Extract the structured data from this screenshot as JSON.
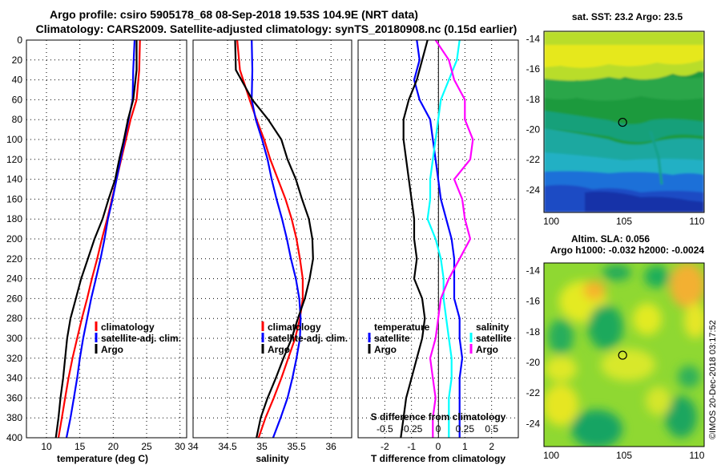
{
  "titles": {
    "line1": "Argo profile: csiro 5905178_68 08-Sep-2018 19.53S 104.9E (NRT data)",
    "line2": "Climatology: CARS2009. Satellite-adjusted climatology: synTS_20180908.nc (0.15d earlier)"
  },
  "colors": {
    "climatology": "#ff0000",
    "satellite": "#0000ff",
    "argo": "#000000",
    "sat_salinity": "#00ffff",
    "argo_salinity": "#ff00ff"
  },
  "legends": {
    "climatology": "climatology",
    "satellite_adj": "satellite-adj. clim.",
    "argo": "Argo",
    "temperature": "temperature",
    "salinity": "salinity",
    "satellite": "satellite"
  },
  "watermark": "©IMOS 20-Dec-2018 03:17:52",
  "chart_data": [
    {
      "type": "line",
      "panel": "temperature",
      "xlabel": "temperature (deg C)",
      "ylabel": "depth",
      "xlim": [
        7,
        31
      ],
      "ylim": [
        400,
        0
      ],
      "xticks": [
        10,
        15,
        20,
        25,
        30
      ],
      "yticks": [
        0,
        20,
        40,
        60,
        80,
        100,
        120,
        140,
        160,
        180,
        200,
        220,
        240,
        260,
        280,
        300,
        320,
        340,
        360,
        380,
        400
      ],
      "grid": true,
      "legend": "lower-right",
      "series": [
        {
          "name": "climatology",
          "color": "#ff0000",
          "depth": [
            0,
            30,
            60,
            80,
            100,
            120,
            140,
            160,
            180,
            200,
            220,
            240,
            260,
            280,
            300,
            320,
            340,
            360,
            380,
            400
          ],
          "values": [
            24.0,
            23.9,
            23.5,
            22.6,
            21.9,
            21.2,
            20.5,
            19.8,
            19.1,
            18.3,
            17.6,
            16.8,
            16.1,
            15.3,
            14.6,
            13.9,
            13.3,
            12.8,
            12.3,
            11.8
          ]
        },
        {
          "name": "satellite-adj. clim.",
          "color": "#0000ff",
          "depth": [
            0,
            30,
            60,
            80,
            100,
            120,
            140,
            160,
            180,
            200,
            220,
            240,
            260,
            280,
            300,
            320,
            340,
            360,
            380,
            400
          ],
          "values": [
            23.2,
            23.0,
            22.9,
            22.3,
            21.7,
            21.1,
            20.5,
            19.9,
            19.2,
            18.7,
            18.1,
            17.4,
            16.7,
            16.1,
            15.5,
            15.0,
            14.6,
            14.1,
            13.6,
            13.0
          ]
        },
        {
          "name": "Argo",
          "color": "#000000",
          "depth": [
            0,
            30,
            60,
            80,
            100,
            120,
            140,
            160,
            180,
            200,
            220,
            240,
            260,
            280,
            300,
            320,
            340,
            360,
            380,
            400
          ],
          "values": [
            23.5,
            23.5,
            23.0,
            22.2,
            21.6,
            20.9,
            20.3,
            19.3,
            18.4,
            17.2,
            16.2,
            15.2,
            14.4,
            13.6,
            13.1,
            12.8,
            12.5,
            12.1,
            11.8,
            11.4
          ]
        }
      ]
    },
    {
      "type": "line",
      "panel": "salinity",
      "xlabel": "salinity",
      "ylabel": "depth",
      "xlim": [
        34.0,
        36.3
      ],
      "ylim": [
        400,
        0
      ],
      "xticks": [
        34,
        34.5,
        35,
        35.5,
        36
      ],
      "grid": true,
      "legend": "lower-right",
      "series": [
        {
          "name": "climatology",
          "color": "#ff0000",
          "depth": [
            0,
            30,
            60,
            80,
            100,
            120,
            140,
            160,
            180,
            200,
            220,
            240,
            260,
            280,
            300,
            320,
            340,
            360,
            380,
            400
          ],
          "values": [
            34.64,
            34.68,
            34.82,
            34.92,
            35.03,
            35.12,
            35.23,
            35.34,
            35.43,
            35.5,
            35.55,
            35.59,
            35.59,
            35.55,
            35.48,
            35.38,
            35.28,
            35.17,
            35.05,
            34.95
          ]
        },
        {
          "name": "satellite-adj. clim.",
          "color": "#0000ff",
          "depth": [
            0,
            30,
            60,
            80,
            100,
            120,
            140,
            160,
            180,
            200,
            220,
            240,
            260,
            280,
            300,
            320,
            340,
            360,
            380,
            400
          ],
          "values": [
            34.85,
            34.86,
            34.85,
            34.91,
            35.0,
            35.08,
            35.14,
            35.21,
            35.29,
            35.36,
            35.42,
            35.49,
            35.54,
            35.56,
            35.55,
            35.5,
            35.44,
            35.37,
            35.27,
            35.16
          ]
        },
        {
          "name": "Argo",
          "color": "#000000",
          "depth": [
            0,
            30,
            60,
            80,
            100,
            120,
            140,
            160,
            180,
            200,
            220,
            240,
            260,
            280,
            300,
            320,
            340,
            360,
            380,
            400
          ],
          "values": [
            34.61,
            34.62,
            34.86,
            35.09,
            35.28,
            35.37,
            35.49,
            35.58,
            35.68,
            35.73,
            35.74,
            35.69,
            35.62,
            35.52,
            35.43,
            35.31,
            35.2,
            35.08,
            34.98,
            34.92
          ]
        }
      ]
    },
    {
      "type": "line",
      "panel": "difference",
      "xlabel": "T difference from climatology",
      "top_axis_label": "S difference from climatology",
      "xlim": [
        -3.0,
        3.0
      ],
      "ylim": [
        400,
        0
      ],
      "xticks": [
        -2,
        -1,
        0,
        1,
        2
      ],
      "top_ticks": [
        "-0.5",
        "-0.25",
        "0",
        "0.25",
        "0.5"
      ],
      "grid": true,
      "legend": "lower",
      "series": [
        {
          "name": "T satellite",
          "color": "#0000ff",
          "depth": [
            0,
            20,
            40,
            60,
            80,
            100,
            120,
            140,
            160,
            180,
            200,
            220,
            240,
            260,
            280,
            300,
            320,
            340,
            360,
            380,
            400
          ],
          "values": [
            -0.8,
            -0.7,
            -0.9,
            -0.7,
            -0.3,
            -0.2,
            -0.1,
            0.0,
            0.1,
            0.3,
            0.5,
            0.6,
            0.6,
            0.6,
            0.8,
            0.8,
            0.9,
            0.8,
            0.8,
            0.8,
            0.8
          ]
        },
        {
          "name": "T Argo",
          "color": "#000000",
          "depth": [
            0,
            20,
            40,
            60,
            80,
            100,
            120,
            140,
            160,
            180,
            200,
            220,
            240,
            260,
            280,
            300,
            320,
            340,
            360,
            380,
            400
          ],
          "values": [
            -0.4,
            -0.6,
            -0.8,
            -1.1,
            -1.3,
            -1.3,
            -1.2,
            -1.1,
            -1.0,
            -0.9,
            -0.9,
            -0.8,
            -0.9,
            -0.6,
            -0.5,
            -0.6,
            -0.8,
            -1.0,
            -1.2,
            -1.3,
            -1.4
          ]
        },
        {
          "name": "S satellite",
          "color": "#00ffff",
          "depth": [
            0,
            20,
            40,
            60,
            80,
            100,
            120,
            140,
            160,
            180,
            200,
            220,
            240,
            260,
            280,
            300,
            320,
            340,
            360,
            380,
            400
          ],
          "values": [
            0.8,
            0.7,
            0.4,
            0.1,
            0.0,
            -0.1,
            -0.2,
            -0.3,
            -0.3,
            -0.4,
            -0.1,
            0.1,
            0.2,
            0.2,
            0.3,
            0.4,
            0.5,
            0.5,
            0.4,
            0.4,
            0.4
          ]
        },
        {
          "name": "S Argo",
          "color": "#ff00ff",
          "depth": [
            0,
            20,
            40,
            60,
            80,
            100,
            120,
            140,
            160,
            180,
            200,
            220,
            240,
            260,
            280,
            300,
            320,
            340,
            360,
            380,
            400
          ],
          "values": [
            -0.1,
            0.4,
            0.6,
            1.0,
            1.0,
            1.3,
            1.2,
            0.6,
            0.9,
            1.0,
            1.2,
            0.8,
            0.4,
            0.1,
            0.0,
            -0.1,
            -0.3,
            -0.2,
            -0.1,
            -0.2,
            -0.2
          ]
        }
      ]
    },
    {
      "type": "heatmap",
      "panel": "sst_map",
      "title": "sat. SST: 23.2 Argo: 23.5",
      "xlim": [
        99.5,
        110.5
      ],
      "ylim": [
        -25.5,
        -13.5
      ],
      "xticks": [
        100,
        105,
        110
      ],
      "yticks": [
        -14,
        -16,
        -18,
        -20,
        -22,
        -24
      ],
      "marker": {
        "lon": 104.9,
        "lat": -19.53
      }
    },
    {
      "type": "heatmap",
      "panel": "sla_map",
      "title1": "Altim. SLA: 0.056",
      "title2": "Argo h1000: -0.032 h2000: -0.0024",
      "xlim": [
        99.5,
        110.5
      ],
      "ylim": [
        -25.5,
        -13.5
      ],
      "xticks": [
        100,
        105,
        110
      ],
      "yticks": [
        -14,
        -16,
        -18,
        -20,
        -22,
        -24
      ],
      "marker": {
        "lon": 104.9,
        "lat": -19.53
      }
    }
  ]
}
